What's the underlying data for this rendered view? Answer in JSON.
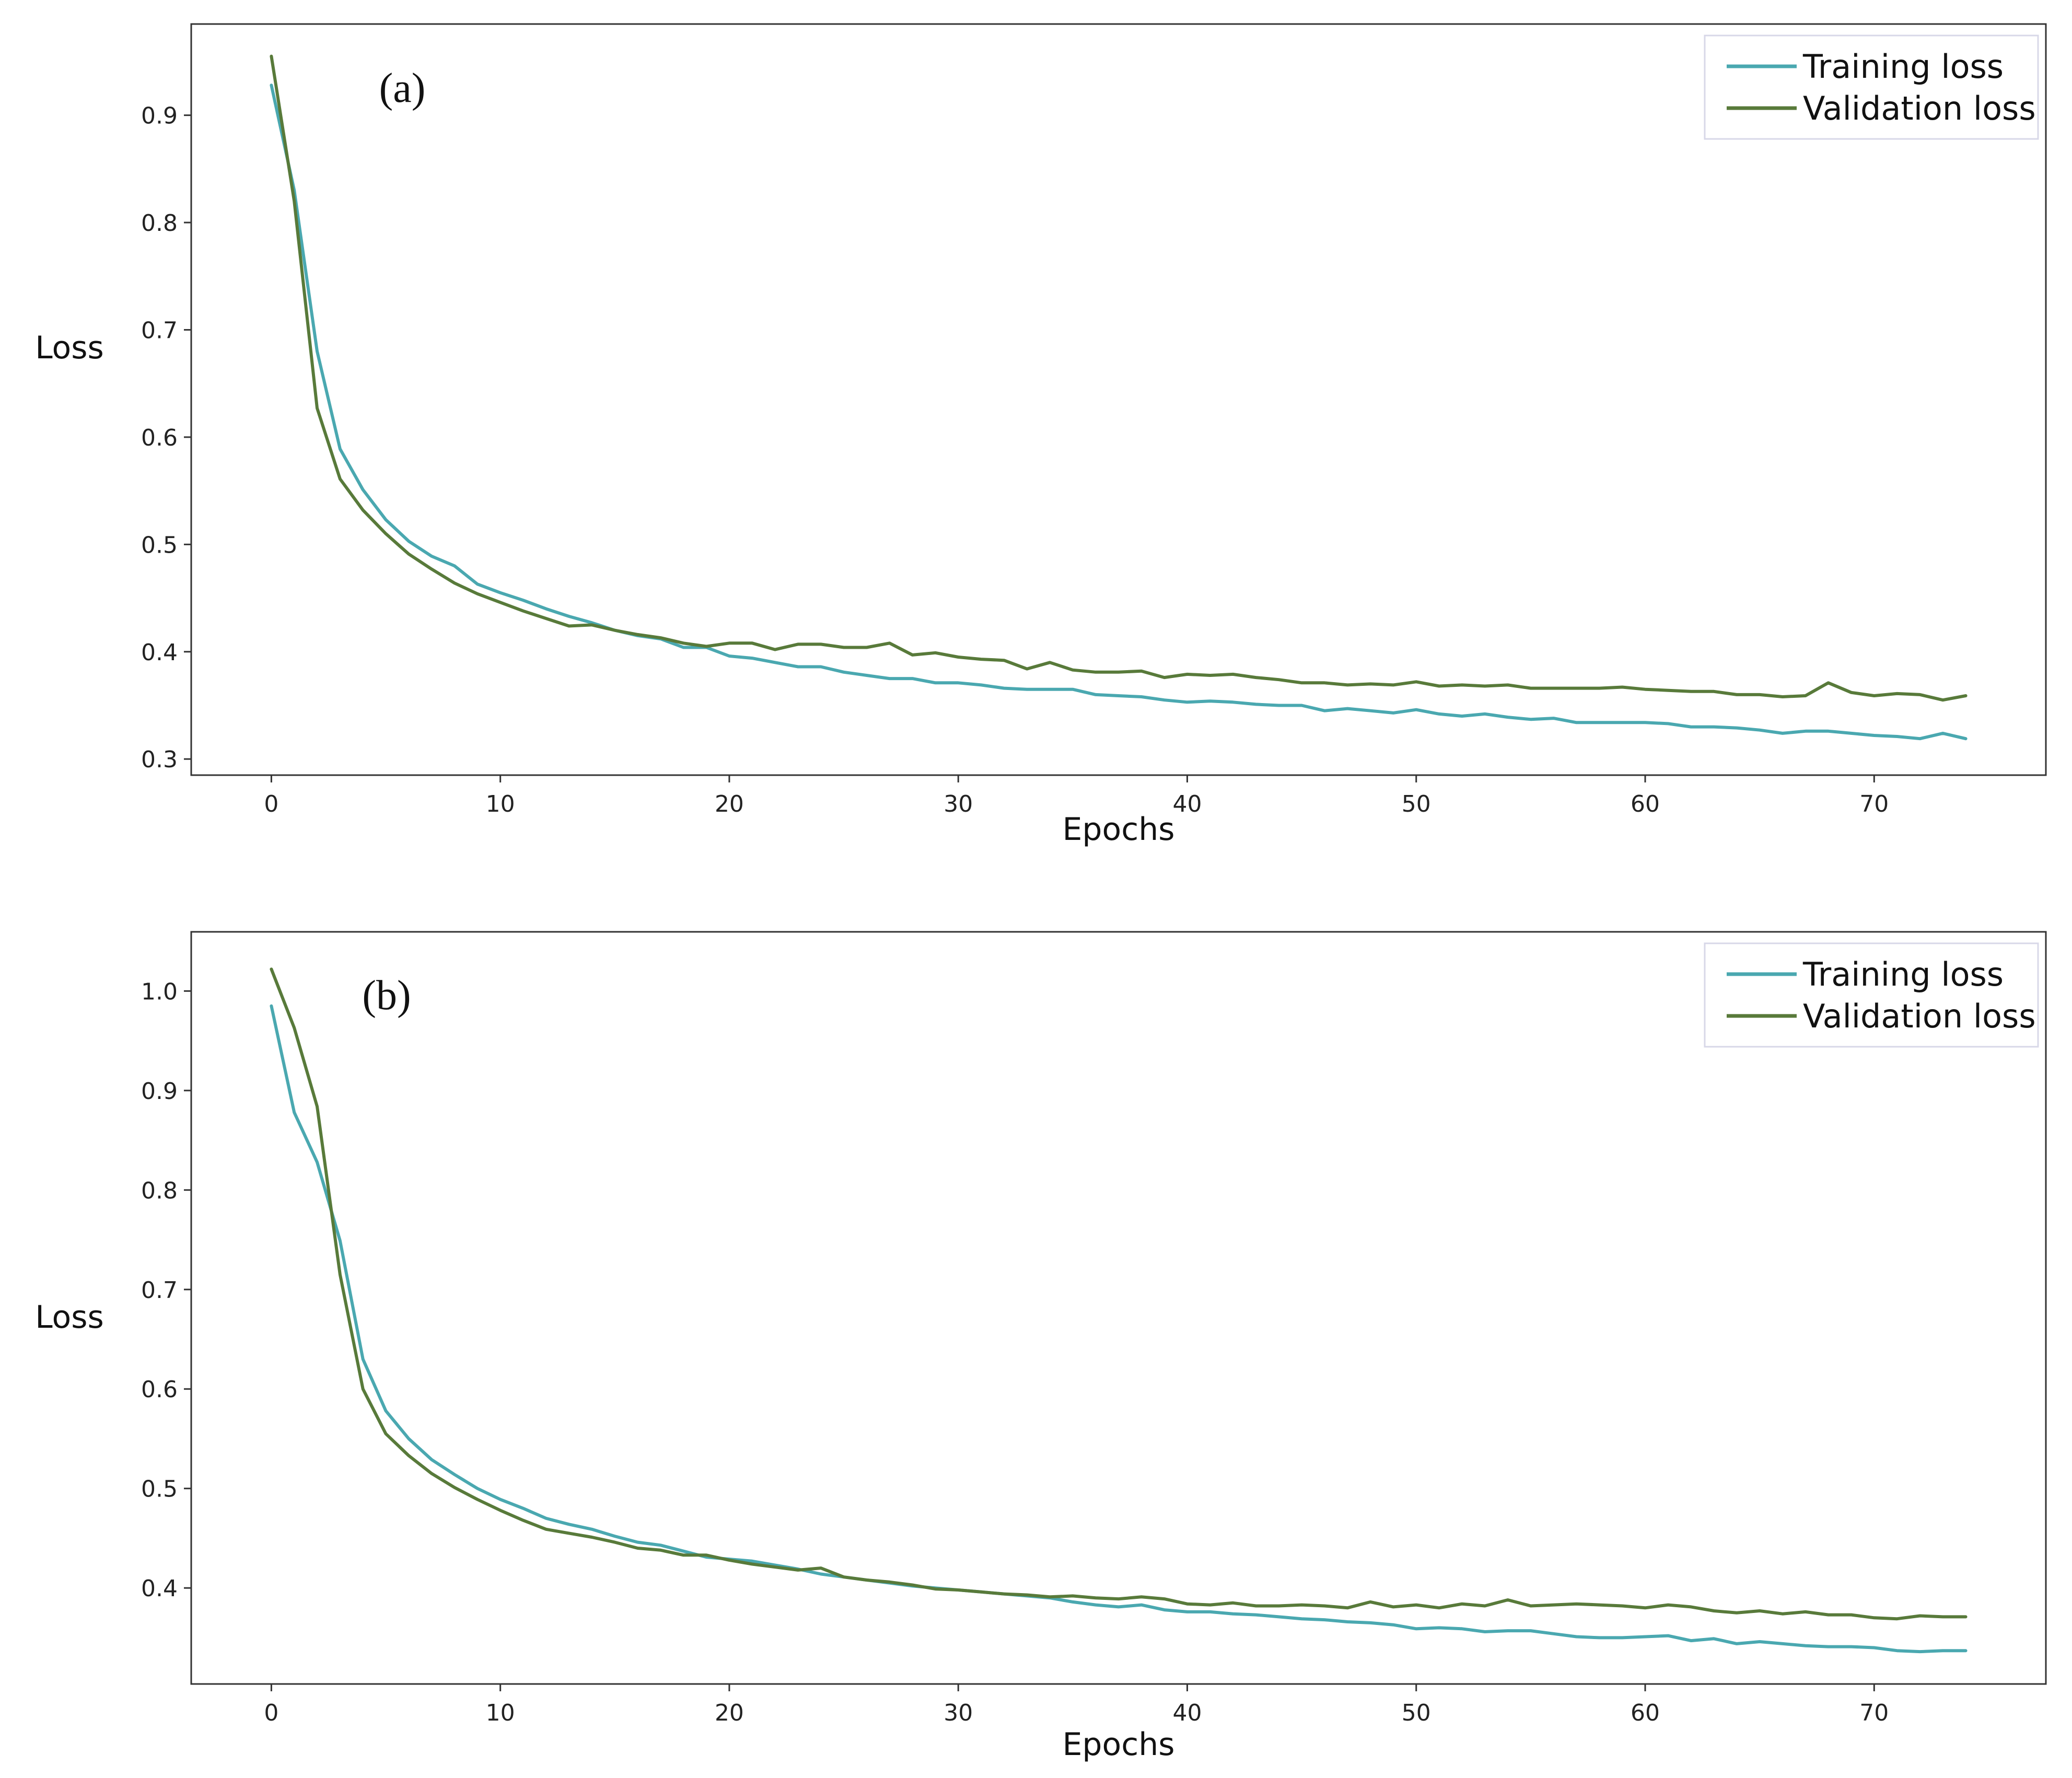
{
  "colors": {
    "training": "#4aa8b0",
    "validation": "#587a3a"
  },
  "chart_data": [
    {
      "type": "line",
      "panel_label": "(a)",
      "xlabel": "Epochs",
      "ylabel": "Loss",
      "xlim": [
        -3.5,
        77.5
      ],
      "ylim": [
        0.285,
        0.985
      ],
      "xticks": [
        0,
        10,
        20,
        30,
        40,
        50,
        60,
        70
      ],
      "yticks": [
        0.3,
        0.4,
        0.5,
        0.6,
        0.7,
        0.8,
        0.9
      ],
      "ytick_labels": [
        "0.3",
        "0.4",
        "0.5",
        "0.6",
        "0.7",
        "0.8",
        "0.9"
      ],
      "legend_position": "top-right",
      "series": [
        {
          "name": "Training loss",
          "color_key": "training",
          "values": [
            0.928,
            0.83,
            0.68,
            0.589,
            0.551,
            0.523,
            0.503,
            0.489,
            0.48,
            0.463,
            0.455,
            0.448,
            0.44,
            0.433,
            0.427,
            0.42,
            0.415,
            0.412,
            0.404,
            0.404,
            0.396,
            0.394,
            0.39,
            0.386,
            0.386,
            0.381,
            0.378,
            0.375,
            0.375,
            0.371,
            0.371,
            0.369,
            0.366,
            0.365,
            0.365,
            0.365,
            0.36,
            0.359,
            0.358,
            0.355,
            0.353,
            0.354,
            0.353,
            0.351,
            0.35,
            0.35,
            0.345,
            0.347,
            0.345,
            0.343,
            0.346,
            0.342,
            0.34,
            0.342,
            0.339,
            0.337,
            0.338,
            0.334,
            0.334,
            0.334,
            0.334,
            0.333,
            0.33,
            0.33,
            0.329,
            0.327,
            0.324,
            0.326,
            0.326,
            0.324,
            0.322,
            0.321,
            0.319,
            0.324,
            0.319
          ]
        },
        {
          "name": "Validation loss",
          "color_key": "validation",
          "values": [
            0.955,
            0.82,
            0.627,
            0.561,
            0.532,
            0.51,
            0.491,
            0.477,
            0.464,
            0.454,
            0.446,
            0.438,
            0.431,
            0.424,
            0.425,
            0.42,
            0.416,
            0.413,
            0.408,
            0.405,
            0.408,
            0.408,
            0.402,
            0.407,
            0.407,
            0.404,
            0.404,
            0.408,
            0.397,
            0.399,
            0.395,
            0.393,
            0.392,
            0.384,
            0.39,
            0.383,
            0.381,
            0.381,
            0.382,
            0.376,
            0.379,
            0.378,
            0.379,
            0.376,
            0.374,
            0.371,
            0.371,
            0.369,
            0.37,
            0.369,
            0.372,
            0.368,
            0.369,
            0.368,
            0.369,
            0.366,
            0.366,
            0.366,
            0.366,
            0.367,
            0.365,
            0.364,
            0.363,
            0.363,
            0.36,
            0.36,
            0.358,
            0.359,
            0.371,
            0.362,
            0.359,
            0.361,
            0.36,
            0.355,
            0.359
          ]
        }
      ]
    },
    {
      "type": "line",
      "panel_label": "(b)",
      "xlabel": "Epochs",
      "ylabel": "Loss",
      "xlim": [
        -3.5,
        77.5
      ],
      "ylim": [
        0.3035,
        1.0595
      ],
      "xticks": [
        0,
        10,
        20,
        30,
        40,
        50,
        60,
        70
      ],
      "yticks": [
        0.4,
        0.5,
        0.6,
        0.7,
        0.8,
        0.9,
        1.0
      ],
      "ytick_labels": [
        "0.4",
        "0.5",
        "0.6",
        "0.7",
        "0.8",
        "0.9",
        "1.0"
      ],
      "legend_position": "top-right",
      "series": [
        {
          "name": "Training loss",
          "color_key": "training",
          "values": [
            0.985,
            0.878,
            0.828,
            0.749,
            0.63,
            0.578,
            0.55,
            0.529,
            0.514,
            0.5,
            0.489,
            0.48,
            0.47,
            0.464,
            0.459,
            0.452,
            0.446,
            0.443,
            0.437,
            0.431,
            0.429,
            0.427,
            0.423,
            0.419,
            0.414,
            0.411,
            0.408,
            0.405,
            0.402,
            0.4,
            0.398,
            0.396,
            0.394,
            0.392,
            0.39,
            0.386,
            0.383,
            0.381,
            0.383,
            0.378,
            0.376,
            0.376,
            0.374,
            0.373,
            0.371,
            0.369,
            0.368,
            0.366,
            0.365,
            0.363,
            0.359,
            0.36,
            0.359,
            0.356,
            0.357,
            0.357,
            0.354,
            0.351,
            0.35,
            0.35,
            0.351,
            0.352,
            0.347,
            0.349,
            0.344,
            0.346,
            0.344,
            0.342,
            0.341,
            0.341,
            0.34,
            0.337,
            0.336,
            0.337,
            0.337
          ]
        },
        {
          "name": "Validation loss",
          "color_key": "validation",
          "values": [
            1.022,
            0.963,
            0.884,
            0.715,
            0.6,
            0.555,
            0.533,
            0.515,
            0.501,
            0.489,
            0.478,
            0.468,
            0.459,
            0.455,
            0.451,
            0.446,
            0.44,
            0.438,
            0.433,
            0.433,
            0.428,
            0.424,
            0.421,
            0.418,
            0.42,
            0.411,
            0.408,
            0.406,
            0.403,
            0.399,
            0.398,
            0.396,
            0.394,
            0.393,
            0.391,
            0.392,
            0.39,
            0.389,
            0.391,
            0.389,
            0.384,
            0.383,
            0.385,
            0.382,
            0.382,
            0.383,
            0.382,
            0.38,
            0.386,
            0.381,
            0.383,
            0.38,
            0.384,
            0.382,
            0.388,
            0.382,
            0.383,
            0.384,
            0.383,
            0.382,
            0.38,
            0.383,
            0.381,
            0.377,
            0.375,
            0.377,
            0.374,
            0.376,
            0.373,
            0.373,
            0.37,
            0.369,
            0.372,
            0.371,
            0.371
          ]
        }
      ]
    }
  ]
}
